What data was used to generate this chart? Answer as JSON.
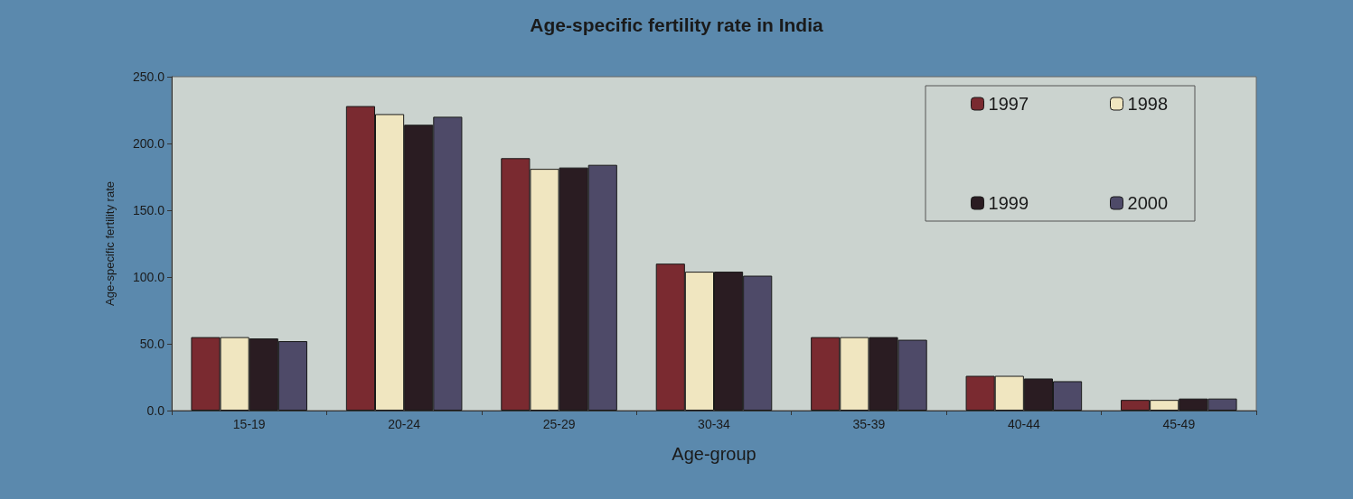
{
  "chart_data": {
    "type": "bar",
    "title": "Age-specific fertility rate in India",
    "xlabel": "Age-group",
    "ylabel": "Age-specific fertility rate",
    "categories": [
      "15-19",
      "20-24",
      "25-29",
      "30-34",
      "35-39",
      "40-44",
      "45-49"
    ],
    "series": [
      {
        "name": "1997",
        "color": "#7a2a30",
        "values": [
          55,
          228,
          189,
          110,
          55,
          26,
          8
        ]
      },
      {
        "name": "1998",
        "color": "#f0e6c0",
        "values": [
          55,
          222,
          181,
          104,
          55,
          26,
          8
        ]
      },
      {
        "name": "1999",
        "color": "#2a1c22",
        "values": [
          54,
          214,
          182,
          104,
          55,
          24,
          9
        ]
      },
      {
        "name": "2000",
        "color": "#4e4a68",
        "values": [
          52,
          220,
          184,
          101,
          53,
          22,
          9
        ]
      }
    ],
    "ylim": [
      0,
      250
    ],
    "yticks": [
      {
        "value": 0,
        "label": "0.0"
      },
      {
        "value": 50,
        "label": "50.0"
      },
      {
        "value": 100,
        "label": "100.0"
      },
      {
        "value": 150,
        "label": "150.0"
      },
      {
        "value": 200,
        "label": "200.0"
      },
      {
        "value": 250,
        "label": "250.0"
      }
    ],
    "grid": false,
    "legend": "top right"
  }
}
